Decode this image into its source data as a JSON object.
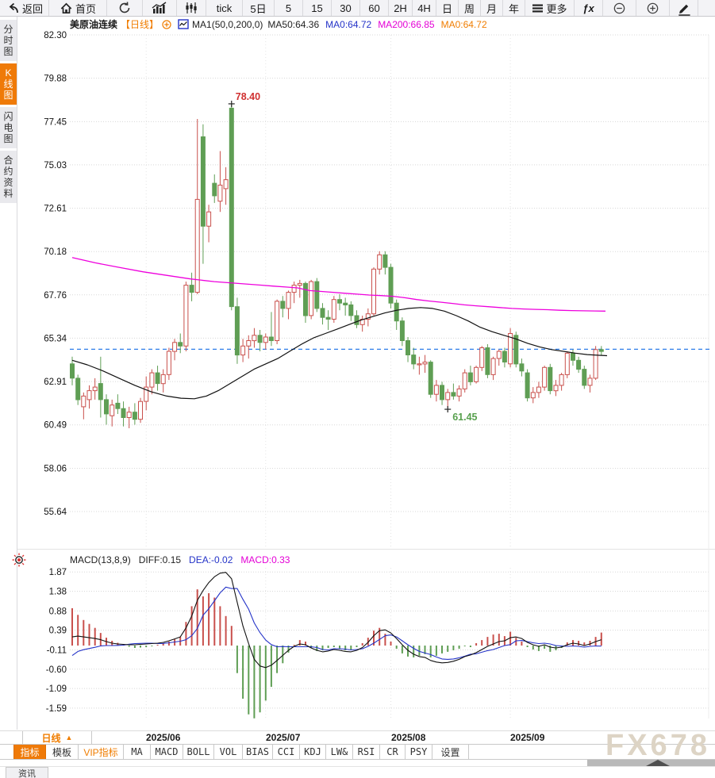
{
  "toolbar": {
    "items": [
      {
        "id": "back",
        "label": "返回",
        "icon": "back-arrow-icon"
      },
      {
        "id": "home",
        "label": "首页",
        "icon": "home-icon"
      },
      {
        "id": "refresh",
        "label": "",
        "icon": "refresh-icon"
      },
      {
        "id": "linechart",
        "label": "",
        "icon": "line-chart-icon"
      },
      {
        "id": "candle",
        "label": "",
        "icon": "candlestick-icon"
      },
      {
        "id": "tick",
        "label": "tick",
        "icon": ""
      },
      {
        "id": "5d",
        "label": "5日",
        "icon": ""
      },
      {
        "id": "5",
        "label": "5",
        "icon": ""
      },
      {
        "id": "15",
        "label": "15",
        "icon": ""
      },
      {
        "id": "30",
        "label": "30",
        "icon": ""
      },
      {
        "id": "60",
        "label": "60",
        "icon": ""
      },
      {
        "id": "2h",
        "label": "2H",
        "icon": ""
      },
      {
        "id": "4h",
        "label": "4H",
        "icon": ""
      },
      {
        "id": "day",
        "label": "日",
        "icon": ""
      },
      {
        "id": "week",
        "label": "周",
        "icon": ""
      },
      {
        "id": "month",
        "label": "月",
        "icon": ""
      },
      {
        "id": "year",
        "label": "年",
        "icon": ""
      },
      {
        "id": "more",
        "label": "更多",
        "icon": "hamburger-icon"
      },
      {
        "id": "fx",
        "label": "ƒx",
        "icon": ""
      },
      {
        "id": "zoomout",
        "label": "",
        "icon": "zoom-out-icon"
      },
      {
        "id": "zoomin",
        "label": "",
        "icon": "zoom-in-icon"
      },
      {
        "id": "draw",
        "label": "",
        "icon": "pencil-icon"
      }
    ]
  },
  "sidebar": {
    "tabs": [
      {
        "id": "time-share",
        "label": "分时图",
        "active": false
      },
      {
        "id": "kline",
        "label": "K线图",
        "active": true
      },
      {
        "id": "lightning",
        "label": "闪电图",
        "active": false
      },
      {
        "id": "contract-info",
        "label": "合约资料",
        "active": false
      }
    ]
  },
  "chart_header": {
    "symbol": "美原油连续",
    "period_tag": "【日线】",
    "ma_settings": "MA1(50,0,200,0)",
    "ma50": "MA50:64.36",
    "ma0_blue": "MA0:64.72",
    "ma200": "MA200:66.85",
    "ma0_orange": "MA0:64.72"
  },
  "macd_header": {
    "title": "MACD(13,8,9)",
    "diff_label": "DIFF:0.15",
    "dea_label": "DEA:-0.02",
    "macd_label": "MACD:0.33"
  },
  "bottom": {
    "period_label": "日线",
    "period_arrow": "▲",
    "news_tab": "资讯",
    "watermark": "FX678",
    "tabs": [
      {
        "id": "indicator",
        "label": "指标",
        "style": "active"
      },
      {
        "id": "template",
        "label": "模板",
        "style": "cn"
      },
      {
        "id": "vip-indicator",
        "label": "VIP指标",
        "style": "vip"
      },
      {
        "id": "ma",
        "label": "MA",
        "style": "en"
      },
      {
        "id": "macd",
        "label": "MACD",
        "style": "en"
      },
      {
        "id": "boll",
        "label": "BOLL",
        "style": "en"
      },
      {
        "id": "vol",
        "label": "VOL",
        "style": "en"
      },
      {
        "id": "bias",
        "label": "BIAS",
        "style": "en"
      },
      {
        "id": "cci",
        "label": "CCI",
        "style": "en"
      },
      {
        "id": "kdj",
        "label": "KDJ",
        "style": "en"
      },
      {
        "id": "lwr",
        "label": "LW&",
        "style": "en"
      },
      {
        "id": "rsi",
        "label": "RSI",
        "style": "en"
      },
      {
        "id": "cr",
        "label": "CR",
        "style": "en"
      },
      {
        "id": "psy",
        "label": "PSY",
        "style": "en"
      },
      {
        "id": "settings",
        "label": "设置",
        "style": "cn"
      }
    ]
  },
  "colors": {
    "up": "#c9504c",
    "down": "#5f9e54",
    "ma50": "#111111",
    "ma200": "#ee00dd",
    "price_line": "#2e7de9",
    "accent_orange": "#ef7a08",
    "blue_text": "#2433c8",
    "magenta_text": "#e400d6",
    "grid": "#d8d8d8",
    "high_label": "#d03030",
    "low_label": "#58a04e",
    "watermark": "#ddd4c5"
  },
  "chart_data": {
    "type": "candlestick+macd",
    "symbol": "美原油连续",
    "period": "日线",
    "price_axis_labels": [
      "82.30",
      "79.88",
      "77.45",
      "75.03",
      "72.61",
      "70.18",
      "67.76",
      "65.34",
      "62.91",
      "60.49",
      "58.06",
      "55.64"
    ],
    "macd_axis_labels": [
      "1.87",
      "1.38",
      "0.88",
      "0.39",
      "-0.11",
      "-0.60",
      "-1.09",
      "-1.59"
    ],
    "months": [
      {
        "label": "2025/06",
        "index": 13
      },
      {
        "label": "2025/07",
        "index": 34
      },
      {
        "label": "2025/08",
        "index": 56
      },
      {
        "label": "2025/09",
        "index": 77
      }
    ],
    "current_price": 64.72,
    "high_annotation": {
      "index": 28,
      "price": 78.4,
      "label": "78.40"
    },
    "low_annotation": {
      "index": 66,
      "price": 61.45,
      "label": "61.45"
    },
    "candles": [
      [
        63.9,
        64.3,
        62.7,
        63.1
      ],
      [
        63.1,
        63.3,
        61.6,
        61.9
      ],
      [
        61.5,
        62.3,
        60.8,
        62.1
      ],
      [
        61.9,
        62.7,
        61.4,
        62.4
      ],
      [
        62.4,
        63.1,
        61.9,
        62.6
      ],
      [
        62.8,
        64.3,
        60.9,
        61.9
      ],
      [
        61.9,
        62.2,
        60.5,
        61.1
      ],
      [
        61.0,
        61.9,
        60.4,
        61.6
      ],
      [
        61.7,
        62.2,
        61.1,
        61.4
      ],
      [
        61.4,
        61.8,
        60.4,
        60.9
      ],
      [
        60.9,
        61.5,
        60.3,
        61.2
      ],
      [
        61.2,
        61.7,
        60.5,
        60.8
      ],
      [
        60.8,
        62.0,
        60.6,
        61.8
      ],
      [
        61.8,
        63.2,
        61.3,
        62.6
      ],
      [
        62.6,
        63.6,
        62.2,
        63.4
      ],
      [
        63.4,
        63.8,
        62.4,
        62.8
      ],
      [
        62.8,
        63.6,
        62.3,
        63.3
      ],
      [
        63.3,
        64.8,
        63.0,
        64.6
      ],
      [
        64.6,
        65.3,
        64.1,
        65.1
      ],
      [
        65.1,
        65.6,
        64.5,
        64.9
      ],
      [
        64.9,
        68.5,
        64.6,
        68.3
      ],
      [
        68.3,
        69.0,
        67.4,
        67.9
      ],
      [
        67.9,
        77.6,
        67.8,
        73.1
      ],
      [
        76.6,
        77.3,
        69.5,
        71.6
      ],
      [
        71.6,
        72.8,
        70.7,
        72.4
      ],
      [
        74.0,
        74.5,
        72.9,
        73.3
      ],
      [
        73.0,
        75.8,
        72.4,
        73.9
      ],
      [
        73.7,
        74.9,
        72.8,
        74.2
      ],
      [
        78.2,
        78.4,
        66.9,
        67.1
      ],
      [
        67.1,
        67.6,
        63.9,
        64.4
      ],
      [
        64.4,
        65.3,
        64.0,
        64.9
      ],
      [
        64.9,
        65.5,
        64.2,
        65.2
      ],
      [
        65.2,
        65.9,
        64.8,
        65.5
      ],
      [
        65.5,
        65.8,
        64.6,
        65.1
      ],
      [
        65.1,
        65.6,
        64.7,
        65.4
      ],
      [
        65.4,
        66.8,
        64.9,
        65.2
      ],
      [
        65.2,
        67.5,
        65.0,
        67.4
      ],
      [
        67.4,
        67.7,
        66.5,
        67.0
      ],
      [
        67.0,
        68.0,
        66.4,
        67.9
      ],
      [
        67.9,
        68.5,
        67.3,
        68.3
      ],
      [
        68.3,
        68.6,
        67.6,
        68.4
      ],
      [
        68.4,
        68.5,
        66.2,
        66.6
      ],
      [
        66.6,
        68.6,
        66.4,
        68.5
      ],
      [
        68.5,
        68.7,
        66.8,
        67.0
      ],
      [
        67.0,
        67.3,
        66.1,
        66.5
      ],
      [
        66.5,
        66.9,
        65.8,
        66.4
      ],
      [
        66.4,
        67.7,
        66.2,
        67.5
      ],
      [
        67.5,
        67.8,
        66.9,
        67.3
      ],
      [
        67.3,
        67.6,
        66.6,
        67.2
      ],
      [
        67.2,
        67.4,
        66.3,
        66.6
      ],
      [
        66.6,
        66.9,
        65.9,
        66.1
      ],
      [
        66.1,
        66.6,
        65.7,
        66.4
      ],
      [
        66.4,
        67.0,
        66.0,
        66.7
      ],
      [
        66.7,
        69.3,
        66.6,
        69.2
      ],
      [
        69.2,
        70.2,
        68.9,
        70.0
      ],
      [
        70.0,
        70.2,
        68.9,
        69.3
      ],
      [
        69.3,
        69.5,
        67.0,
        67.3
      ],
      [
        67.3,
        67.5,
        65.8,
        66.3
      ],
      [
        66.3,
        66.5,
        64.9,
        65.2
      ],
      [
        65.2,
        65.4,
        64.0,
        64.4
      ],
      [
        64.4,
        64.8,
        63.6,
        63.9
      ],
      [
        63.9,
        64.3,
        63.3,
        63.9
      ],
      [
        63.9,
        64.4,
        63.4,
        64.0
      ],
      [
        64.0,
        64.1,
        62.0,
        62.2
      ],
      [
        62.2,
        63.0,
        61.8,
        62.7
      ],
      [
        62.7,
        62.9,
        61.6,
        61.9
      ],
      [
        61.9,
        62.5,
        61.45,
        62.3
      ],
      [
        62.3,
        62.8,
        61.9,
        62.1
      ],
      [
        62.1,
        62.7,
        61.8,
        62.5
      ],
      [
        62.5,
        63.6,
        62.3,
        63.4
      ],
      [
        63.4,
        63.8,
        62.7,
        62.9
      ],
      [
        62.9,
        63.8,
        62.8,
        63.7
      ],
      [
        63.7,
        64.9,
        63.5,
        64.8
      ],
      [
        64.8,
        65.0,
        63.1,
        63.3
      ],
      [
        63.3,
        64.3,
        63.0,
        64.2
      ],
      [
        64.2,
        64.7,
        63.8,
        64.6
      ],
      [
        64.6,
        64.8,
        63.7,
        64.0
      ],
      [
        63.9,
        65.9,
        63.7,
        65.6
      ],
      [
        65.5,
        65.7,
        63.7,
        63.9
      ],
      [
        63.9,
        64.2,
        63.2,
        63.5
      ],
      [
        63.4,
        63.6,
        61.8,
        62.0
      ],
      [
        62.0,
        62.6,
        61.7,
        62.3
      ],
      [
        62.3,
        62.9,
        62.0,
        62.6
      ],
      [
        62.6,
        63.8,
        62.4,
        63.7
      ],
      [
        63.7,
        63.9,
        62.2,
        62.4
      ],
      [
        62.4,
        63.0,
        62.1,
        62.7
      ],
      [
        62.7,
        63.4,
        62.4,
        63.3
      ],
      [
        63.3,
        64.6,
        63.1,
        64.5
      ],
      [
        64.5,
        64.7,
        63.8,
        64.1
      ],
      [
        64.1,
        64.3,
        63.4,
        63.6
      ],
      [
        63.6,
        63.8,
        62.5,
        62.7
      ],
      [
        62.7,
        63.3,
        62.3,
        63.1
      ],
      [
        63.1,
        64.9,
        63.0,
        64.7
      ],
      [
        64.7,
        64.9,
        64.4,
        64.6
      ]
    ],
    "ma50": [
      [
        91,
        64.1
      ],
      [
        110,
        63.85
      ],
      [
        130,
        63.5
      ],
      [
        150,
        63.1
      ],
      [
        170,
        62.7
      ],
      [
        190,
        62.35
      ],
      [
        210,
        62.1
      ],
      [
        228,
        61.98
      ],
      [
        245,
        61.95
      ],
      [
        260,
        62.1
      ],
      [
        275,
        62.4
      ],
      [
        290,
        62.8
      ],
      [
        305,
        63.2
      ],
      [
        320,
        63.6
      ],
      [
        335,
        63.9
      ],
      [
        350,
        64.2
      ],
      [
        365,
        64.6
      ],
      [
        380,
        65.0
      ],
      [
        395,
        65.35
      ],
      [
        410,
        65.6
      ],
      [
        425,
        65.85
      ],
      [
        440,
        66.1
      ],
      [
        455,
        66.35
      ],
      [
        470,
        66.55
      ],
      [
        485,
        66.75
      ],
      [
        500,
        66.9
      ],
      [
        515,
        67.0
      ],
      [
        530,
        67.05
      ],
      [
        545,
        67.0
      ],
      [
        560,
        66.85
      ],
      [
        575,
        66.6
      ],
      [
        590,
        66.3
      ],
      [
        605,
        65.95
      ],
      [
        620,
        65.7
      ],
      [
        635,
        65.5
      ],
      [
        650,
        65.3
      ],
      [
        665,
        65.05
      ],
      [
        680,
        64.85
      ],
      [
        695,
        64.7
      ],
      [
        710,
        64.6
      ],
      [
        725,
        64.5
      ],
      [
        740,
        64.42
      ],
      [
        755,
        64.38
      ],
      [
        765,
        64.36
      ]
    ],
    "ma200": [
      [
        91,
        69.85
      ],
      [
        120,
        69.55
      ],
      [
        150,
        69.3
      ],
      [
        180,
        69.05
      ],
      [
        210,
        68.85
      ],
      [
        240,
        68.65
      ],
      [
        270,
        68.5
      ],
      [
        300,
        68.4
      ],
      [
        330,
        68.3
      ],
      [
        345,
        68.25
      ],
      [
        360,
        68.2
      ],
      [
        375,
        68.15
      ],
      [
        390,
        68.0
      ],
      [
        405,
        67.95
      ],
      [
        420,
        67.9
      ],
      [
        435,
        67.85
      ],
      [
        450,
        67.8
      ],
      [
        465,
        67.75
      ],
      [
        480,
        67.72
      ],
      [
        495,
        67.68
      ],
      [
        510,
        67.6
      ],
      [
        525,
        67.5
      ],
      [
        540,
        67.42
      ],
      [
        555,
        67.35
      ],
      [
        570,
        67.28
      ],
      [
        585,
        67.2
      ],
      [
        600,
        67.15
      ],
      [
        615,
        67.1
      ],
      [
        630,
        67.05
      ],
      [
        645,
        67.0
      ],
      [
        660,
        66.97
      ],
      [
        675,
        66.95
      ],
      [
        690,
        66.93
      ],
      [
        705,
        66.9
      ],
      [
        720,
        66.88
      ],
      [
        735,
        66.87
      ],
      [
        750,
        66.86
      ],
      [
        763,
        66.85
      ]
    ],
    "macd": {
      "diff": [
        0.22,
        0.24,
        0.22,
        0.2,
        0.18,
        0.15,
        0.1,
        0.06,
        0.04,
        0.03,
        0.02,
        0.02,
        0.03,
        0.04,
        0.05,
        0.06,
        0.08,
        0.12,
        0.17,
        0.22,
        0.45,
        0.75,
        1.15,
        1.4,
        1.6,
        1.75,
        1.84,
        1.86,
        1.7,
        1.1,
        0.5,
        0.05,
        -0.35,
        -0.52,
        -0.56,
        -0.5,
        -0.38,
        -0.25,
        -0.12,
        -0.02,
        0.04,
        0.02,
        -0.06,
        -0.12,
        -0.16,
        -0.14,
        -0.1,
        -0.12,
        -0.15,
        -0.16,
        -0.12,
        -0.05,
        0.08,
        0.25,
        0.38,
        0.4,
        0.32,
        0.18,
        0.02,
        -0.12,
        -0.22,
        -0.28,
        -0.3,
        -0.38,
        -0.42,
        -0.44,
        -0.43,
        -0.4,
        -0.35,
        -0.28,
        -0.24,
        -0.18,
        -0.1,
        -0.02,
        0.04,
        0.1,
        0.12,
        0.2,
        0.22,
        0.18,
        0.08,
        0.02,
        -0.02,
        0.02,
        -0.04,
        -0.06,
        -0.04,
        0.02,
        0.06,
        0.04,
        0.0,
        0.04,
        0.1,
        0.15
      ],
      "hist": [
        0.95,
        0.78,
        0.65,
        0.55,
        0.45,
        0.32,
        0.2,
        0.12,
        0.07,
        0.04,
        -0.03,
        -0.06,
        -0.05,
        -0.04,
        -0.02,
        0.02,
        0.05,
        0.1,
        0.16,
        0.22,
        0.6,
        1.0,
        1.43,
        1.25,
        1.33,
        1.22,
        1.0,
        0.75,
        0.5,
        -0.7,
        -1.35,
        -1.75,
        -1.85,
        -1.7,
        -1.4,
        -1.05,
        -0.7,
        -0.45,
        -0.18,
        0.02,
        0.14,
        0.1,
        -0.06,
        -0.14,
        -0.12,
        -0.06,
        -0.04,
        -0.08,
        -0.12,
        -0.1,
        -0.04,
        0.06,
        0.2,
        0.38,
        0.45,
        0.3,
        0.1,
        -0.08,
        -0.2,
        -0.28,
        -0.3,
        -0.26,
        -0.22,
        -0.3,
        -0.26,
        -0.2,
        -0.16,
        -0.12,
        -0.08,
        -0.02,
        -0.04,
        0.06,
        0.14,
        0.22,
        0.28,
        0.3,
        0.24,
        0.35,
        0.2,
        0.1,
        -0.04,
        -0.1,
        -0.14,
        -0.08,
        -0.16,
        -0.12,
        -0.06,
        0.08,
        0.14,
        0.12,
        0.08,
        0.12,
        0.22,
        0.33
      ]
    }
  }
}
